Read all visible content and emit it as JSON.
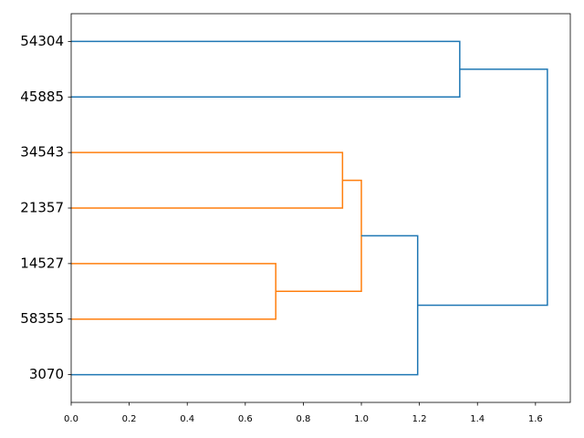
{
  "chart_data": {
    "type": "dendrogram",
    "orientation": "right",
    "leaves": [
      "3070",
      "58355",
      "14527",
      "21357",
      "34543",
      "45885",
      "54304"
    ],
    "merges": [
      {
        "children": [
          1,
          2
        ],
        "height": 0.705,
        "color": "#ff7f0e"
      },
      {
        "children": [
          3,
          4
        ],
        "height": 0.935,
        "color": "#ff7f0e"
      },
      {
        "children": [
          7,
          8
        ],
        "height": 1.0,
        "color": "#ff7f0e"
      },
      {
        "children": [
          0,
          9
        ],
        "height": 1.194,
        "color": "#1f77b4"
      },
      {
        "children": [
          5,
          6
        ],
        "height": 1.339,
        "color": "#1f77b4"
      },
      {
        "children": [
          10,
          11
        ],
        "height": 1.641,
        "color": "#1f77b4"
      }
    ],
    "xlim": [
      0,
      1.72
    ],
    "xticks": [
      {
        "value": 0,
        "label": "0.0"
      },
      0.2,
      0.4,
      0.6,
      0.8,
      {
        "value": 1,
        "label": "1.0"
      },
      1.2,
      1.4,
      1.6
    ]
  }
}
